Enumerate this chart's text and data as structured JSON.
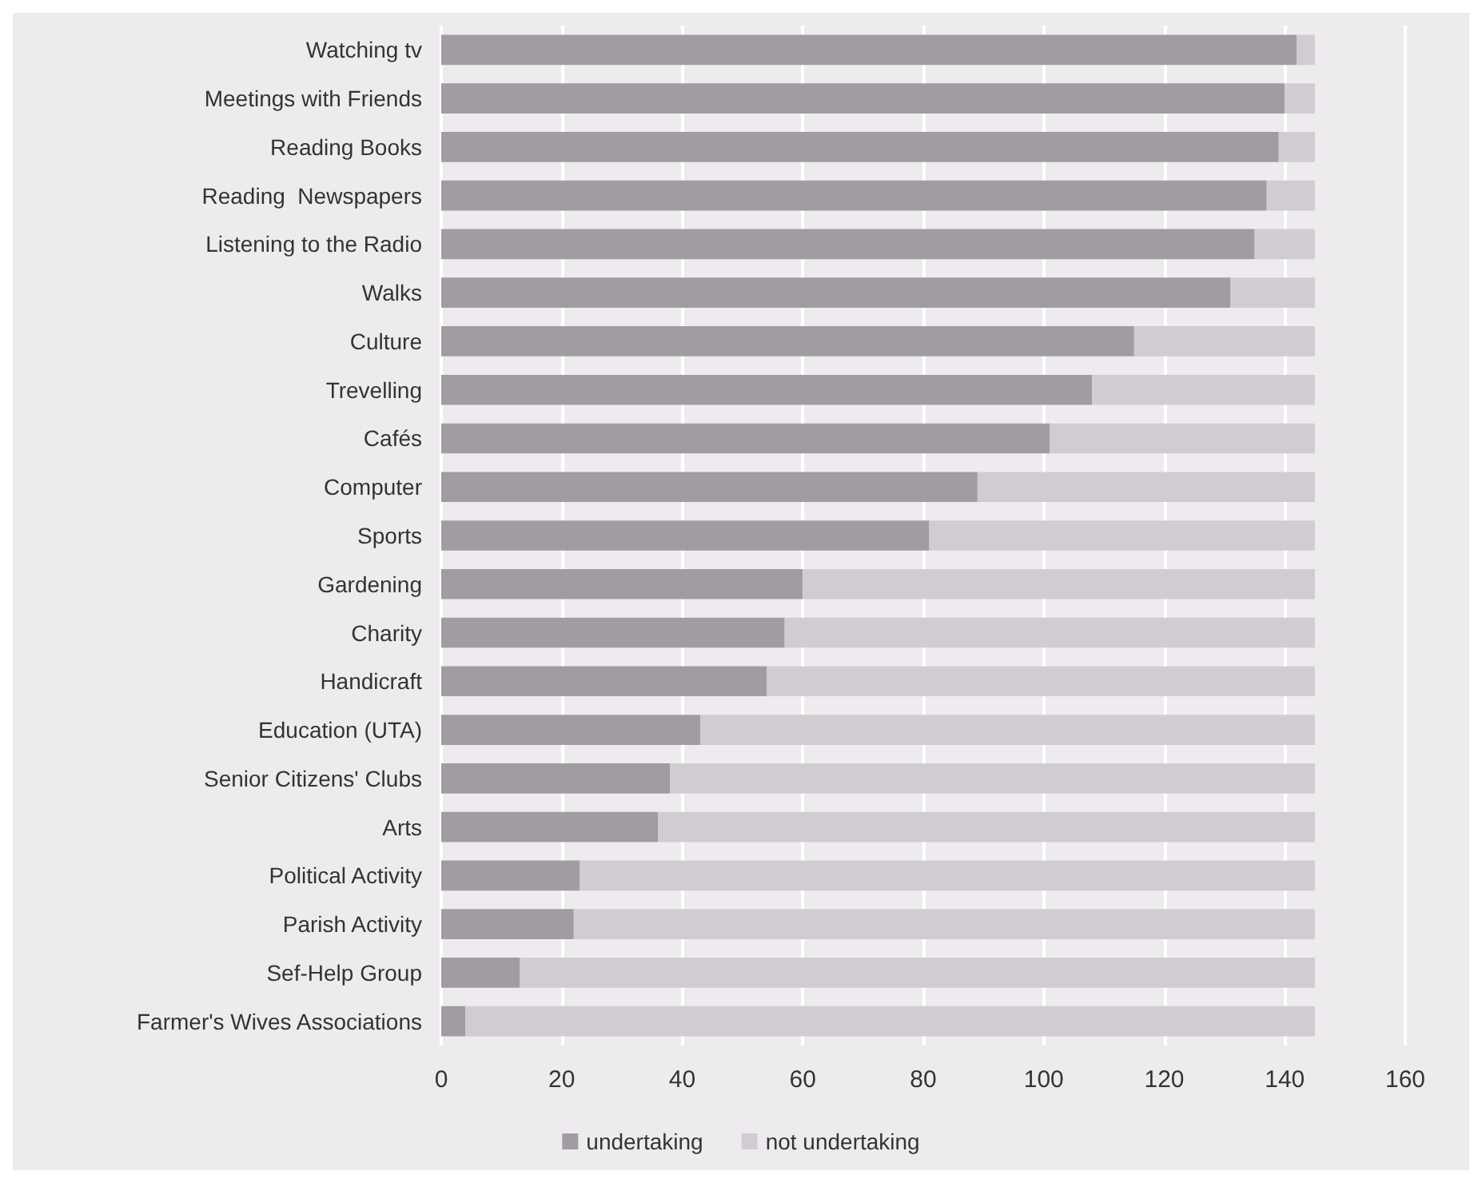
{
  "chart_data": {
    "type": "bar",
    "orientation": "horizontal",
    "stacked": true,
    "grid": "x",
    "legend": "bottom",
    "categories": [
      "Watching tv",
      "Meetings with Friends",
      "Reading Books",
      "Reading  Newspapers",
      "Listening to the Radio",
      "Walks",
      "Culture",
      "Trevelling",
      "Cafés",
      "Computer",
      "Sports",
      "Gardening",
      "Charity",
      "Handicraft",
      "Education (UTA)",
      "Senior Citizens' Clubs",
      "Arts",
      "Political Activity",
      "Parish Activity",
      "Sef-Help Group",
      "Farmer's Wives Associations"
    ],
    "series": [
      {
        "name": "undertaking",
        "color": "#a09ca1",
        "values": [
          142,
          140,
          139,
          137,
          135,
          131,
          115,
          108,
          101,
          89,
          81,
          60,
          57,
          54,
          43,
          38,
          36,
          23,
          22,
          13,
          4
        ]
      },
      {
        "name": "not undertaking",
        "color": "#d0ccd1",
        "values": [
          3,
          5,
          6,
          8,
          10,
          14,
          30,
          37,
          44,
          56,
          64,
          85,
          88,
          91,
          102,
          107,
          109,
          122,
          123,
          132,
          141
        ]
      }
    ],
    "xlim": [
      0,
      160
    ],
    "xticks": [
      0,
      20,
      40,
      60,
      80,
      100,
      120,
      140,
      160
    ]
  }
}
